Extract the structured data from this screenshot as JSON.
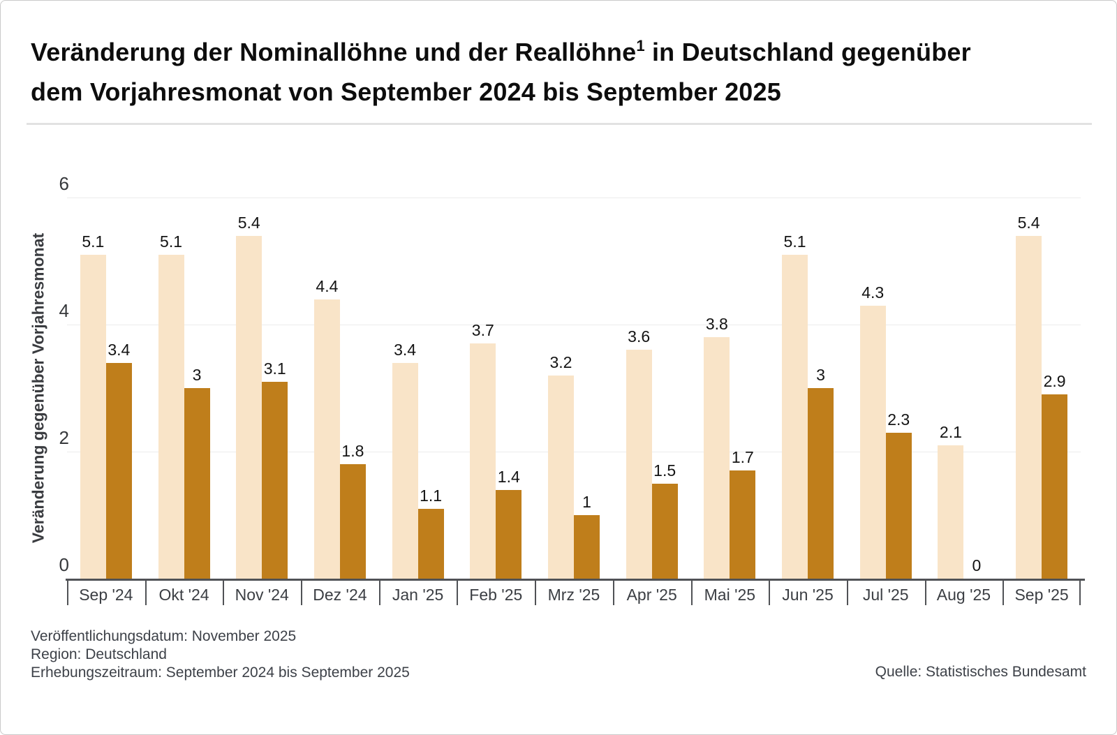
{
  "title": {
    "line1_pre": "Veränderung der Nominallöhne und der Reallöhne",
    "superscript": "1",
    "line1_post": " in Deutschland gegenüber",
    "line2": "dem Vorjahresmonat von September 2024 bis September 2025"
  },
  "chart_data": {
    "type": "bar",
    "title": "Veränderung der Nominallöhne und der Reallöhne in Deutschland gegenüber dem Vorjahresmonat von September 2024 bis September 2025",
    "categories": [
      "Sep '24",
      "Okt '24",
      "Nov '24",
      "Dez '24",
      "Jan '25",
      "Feb '25",
      "Mrz '25",
      "Apr '25",
      "Mai '25",
      "Jun '25",
      "Jul '25",
      "Aug '25",
      "Sep '25"
    ],
    "series": [
      {
        "name": "Nominallöhne",
        "color": "#F9E4C8",
        "values": [
          5.1,
          5.1,
          5.4,
          4.4,
          3.4,
          3.7,
          3.2,
          3.6,
          3.8,
          5.1,
          4.3,
          2.1,
          5.4
        ]
      },
      {
        "name": "Reallöhne",
        "color": "#BF7E1B",
        "values": [
          3.4,
          3,
          3.1,
          1.8,
          1.1,
          1.4,
          1,
          1.5,
          1.7,
          3,
          2.3,
          0,
          2.9
        ]
      }
    ],
    "xlabel": "",
    "ylabel": "Veränderung gegenüber Vorjahresmonat",
    "ylim": [
      0,
      6
    ],
    "yticks": [
      0,
      2,
      4,
      6
    ],
    "grid": true,
    "legend": false,
    "value_labels": true
  },
  "footer": {
    "line1": "Veröffentlichungsdatum: November 2025",
    "line2": "Region: Deutschland",
    "line3": "Erhebungszeitraum: September 2024 bis September 2025",
    "source": "Quelle: Statistisches Bundesamt"
  },
  "colors": {
    "nominal_bar": "#F9E4C8",
    "real_bar": "#BF7E1B",
    "axis": "#505256",
    "gridline": "#ececec",
    "title_text": "#0d0d0d",
    "label_text": "#141414",
    "muted_text": "#3d4148"
  }
}
